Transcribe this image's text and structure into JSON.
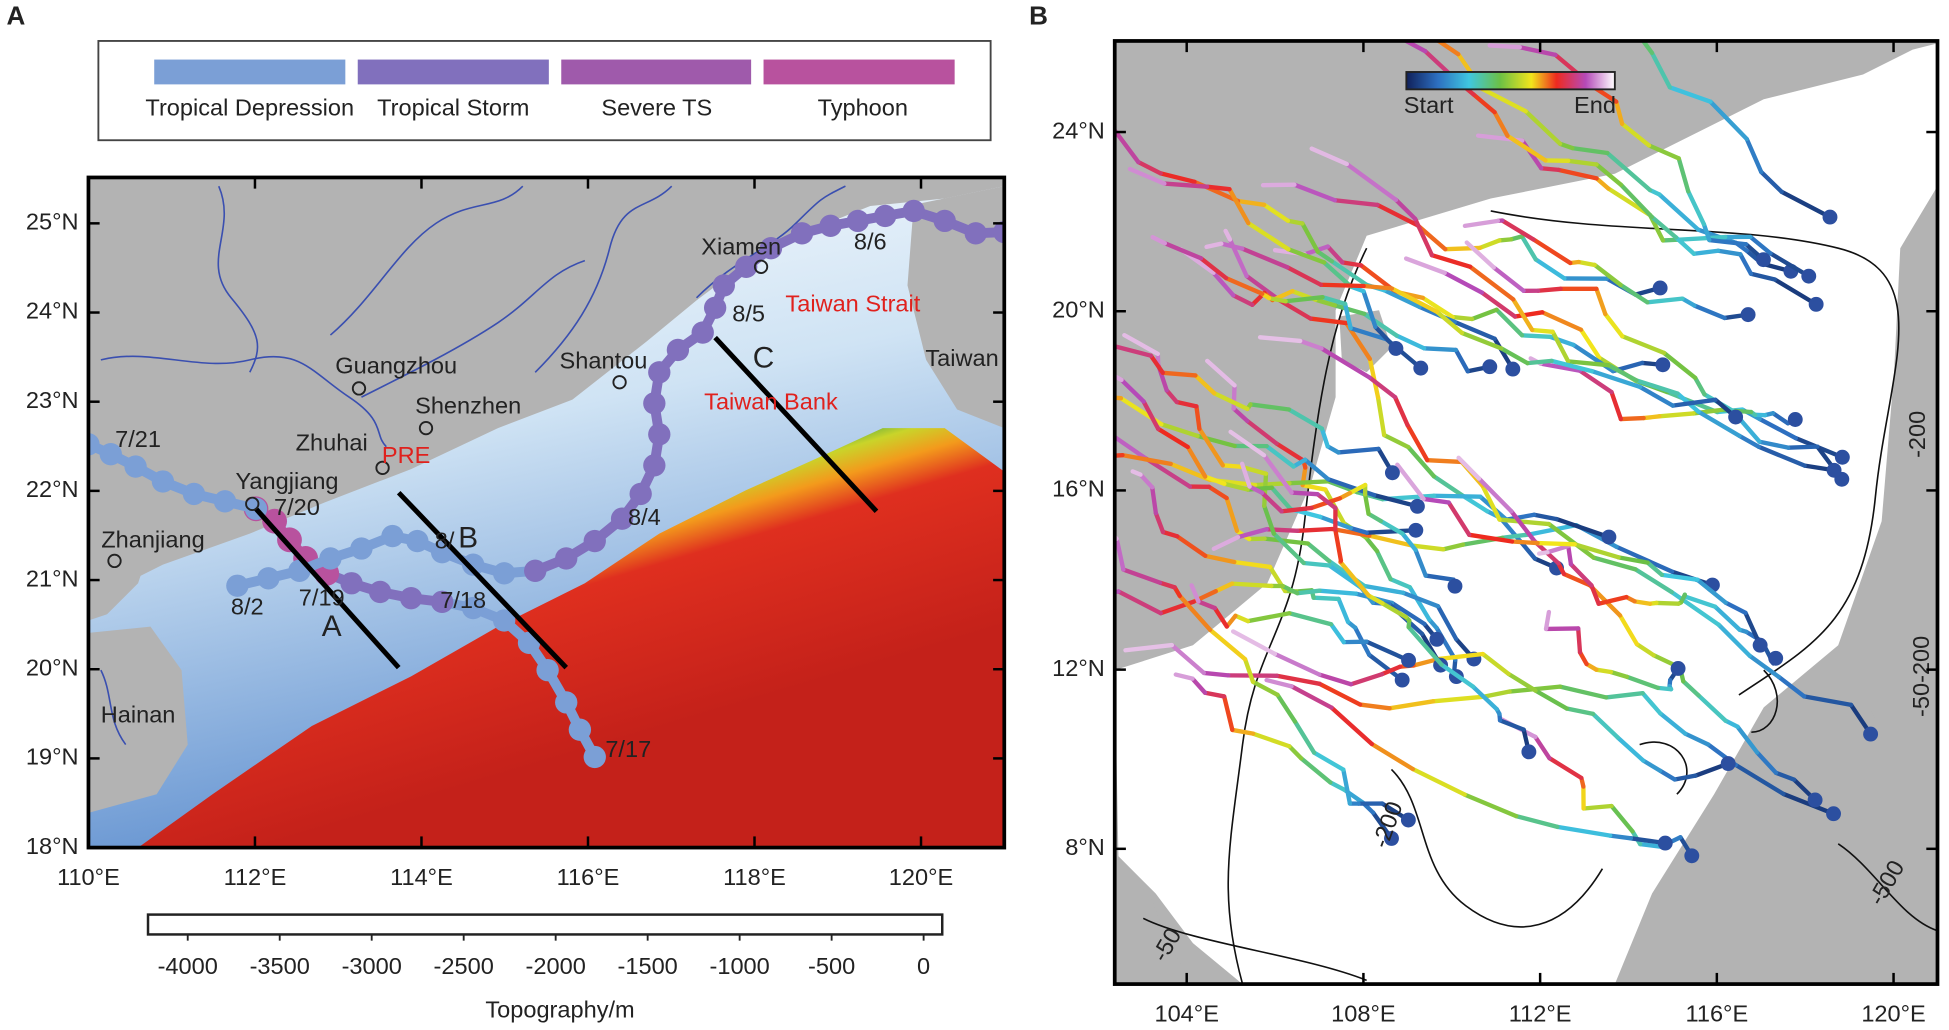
{
  "panels": [
    {
      "label": "A",
      "legend": [
        "Tropical Depression",
        "Tropical Storm",
        "Severe TS",
        "Typhoon"
      ],
      "xticks": [
        {
          "value": 110,
          "label": "110°E"
        },
        {
          "value": 112,
          "label": "112°E"
        },
        {
          "value": 114,
          "label": "114°E"
        },
        {
          "value": 116,
          "label": "116°E"
        },
        {
          "value": 118,
          "label": "118°E"
        },
        {
          "value": 120,
          "label": "120°E"
        }
      ],
      "yticks": [
        {
          "value": 18,
          "label": "18°N"
        },
        {
          "value": 19,
          "label": "19°N"
        },
        {
          "value": 20,
          "label": "20°N"
        },
        {
          "value": 21,
          "label": "21°N"
        },
        {
          "value": 22,
          "label": "22°N"
        },
        {
          "value": 23,
          "label": "23°N"
        },
        {
          "value": 24,
          "label": "24°N"
        },
        {
          "value": 25,
          "label": "25°N"
        }
      ],
      "places": [
        "Guangzhou",
        "Shenzhen",
        "Zhuhai",
        "Yangjiang",
        "Zhanjiang",
        "Hainan",
        "Shantou",
        "Xiamen",
        "Taiwan"
      ],
      "regions": [
        "PRE",
        "Taiwan Strait",
        "Taiwan Bank"
      ],
      "dates": [
        "7/21",
        "7/20",
        "7/19",
        "7/18",
        "7/17",
        "8/2",
        "8/",
        "8/4",
        "8/5",
        "8/6"
      ],
      "sections": [
        "A",
        "B",
        "C"
      ],
      "colorbar": {
        "title": "Topography/m",
        "ticks": [
          -4000,
          -3500,
          -3000,
          -2500,
          -2000,
          -1500,
          -1000,
          -500,
          0
        ]
      }
    },
    {
      "label": "B",
      "colorbar": {
        "start": "Start",
        "end": "End"
      },
      "contour_labels": [
        "-200",
        "-50-200",
        "-200",
        "-500",
        "-50"
      ],
      "xticks": [
        {
          "value": 104,
          "label": "104°E"
        },
        {
          "value": 108,
          "label": "108°E"
        },
        {
          "value": 112,
          "label": "112°E"
        },
        {
          "value": 116,
          "label": "116°E"
        },
        {
          "value": 120,
          "label": "120°E"
        }
      ],
      "yticks": [
        {
          "value": 8,
          "label": "8°N"
        },
        {
          "value": 12,
          "label": "12°N"
        },
        {
          "value": 16,
          "label": "16°N"
        },
        {
          "value": 20,
          "label": "20°N"
        },
        {
          "value": 24,
          "label": "24°N"
        }
      ]
    }
  ]
}
